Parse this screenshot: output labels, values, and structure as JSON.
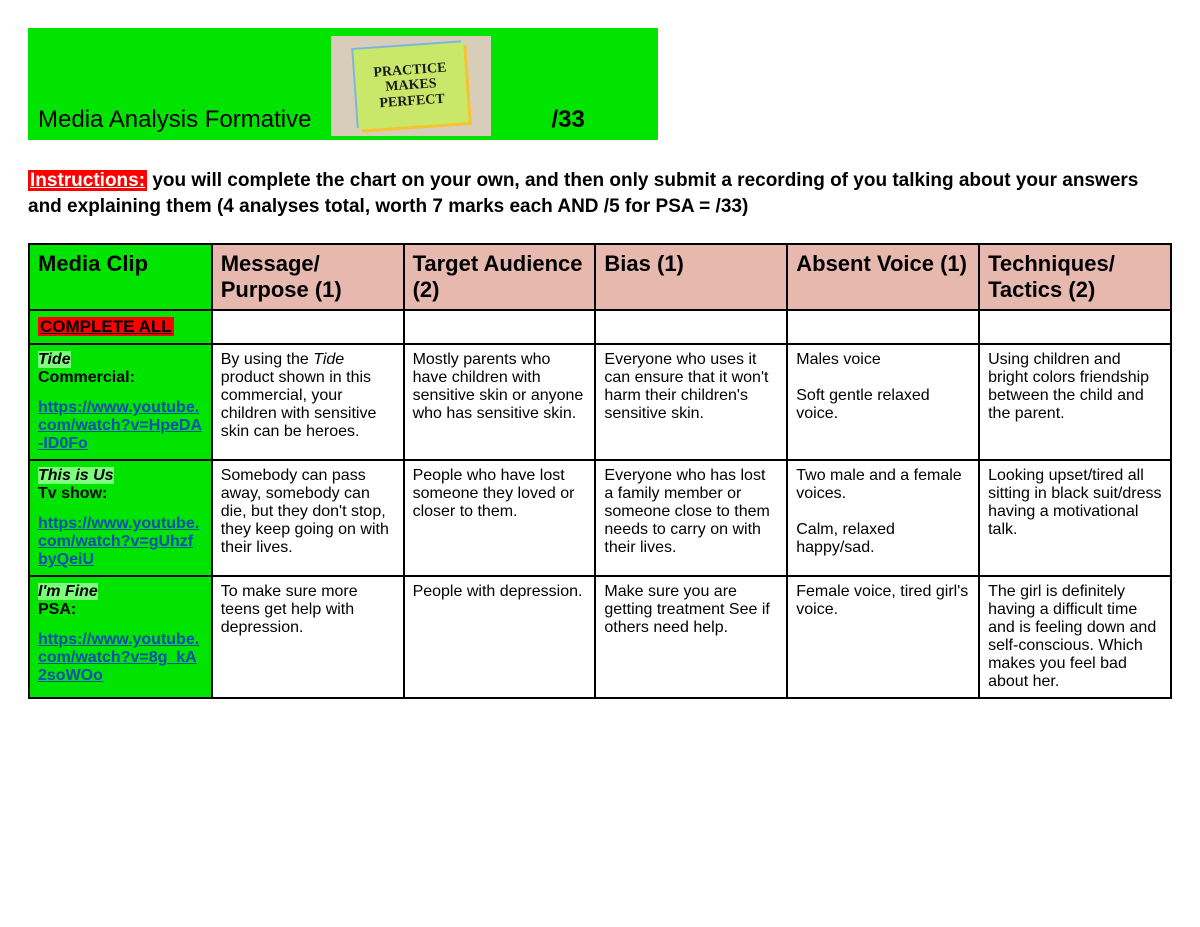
{
  "colors": {
    "green": "#00e400",
    "highlight_green": "#7dff7d",
    "pink": "#e6b8ae",
    "red": "#ff0000",
    "link": "#0b4db3"
  },
  "banner": {
    "title": "Media Analysis Formative",
    "sticky_text": "PRACTICE\nMAKES\nPERFECT",
    "score_label": "/33"
  },
  "instructions": {
    "label": "Instructions:",
    "text": "  you will complete the chart on your own, and then only submit a recording of you talking about your answers and explaining them (4 analyses total, worth 7 marks each AND /5 for PSA = /33)"
  },
  "table": {
    "headers": [
      "Media Clip",
      "Message/ Purpose (1)",
      "Target Audience (2)",
      "Bias (1)",
      "Absent Voice (1)",
      "Techniques/ Tactics (2)"
    ],
    "complete_label": "COMPLETE ALL",
    "rows": [
      {
        "title_hl": "Tide",
        "type": "Commercial:",
        "link": "https://www.youtube.com/watch?v=HpeDA-ID0Fo",
        "message": "By using the Tide product shown in this commercial, your children with sensitive skin can be heroes.",
        "audience": "Mostly parents who have children with sensitive skin or anyone who has sensitive skin.",
        "bias": "Everyone who uses it can ensure that it won't harm their children's sensitive skin.",
        "absent": "Males voice\n\nSoft gentle relaxed voice.",
        "tech": "Using children and bright colors friendship between the child and the parent."
      },
      {
        "title_hl": "This is Us",
        "type": "Tv show:",
        "link": "https://www.youtube.com/watch?v=gUhzfbyQeiU",
        "message": "Somebody can pass away, somebody can die, but they don't stop, they keep going on with their lives.",
        "audience": "People who have lost someone they loved or closer to them.",
        "bias": "Everyone who has lost a family member or someone close to them needs to carry on with their lives.",
        "absent": "Two male and a female voices.\n\nCalm, relaxed happy/sad.",
        "tech": "Looking upset/tired all sitting in black suit/dress having a motivational talk."
      },
      {
        "title_hl": "I'm Fine",
        "type": "PSA:",
        "link": "https://www.youtube.com/watch?v=8g_kA2soWOo",
        "message": "To make sure more teens get help with depression.",
        "audience": "People with depression.",
        "bias": "Make sure you are getting treatment See if others need help.",
        "absent": "Female voice, tired girl's voice.",
        "tech": "The girl is definitely having a difficult time and is feeling down and self-conscious. Which makes you feel bad about her."
      }
    ]
  }
}
